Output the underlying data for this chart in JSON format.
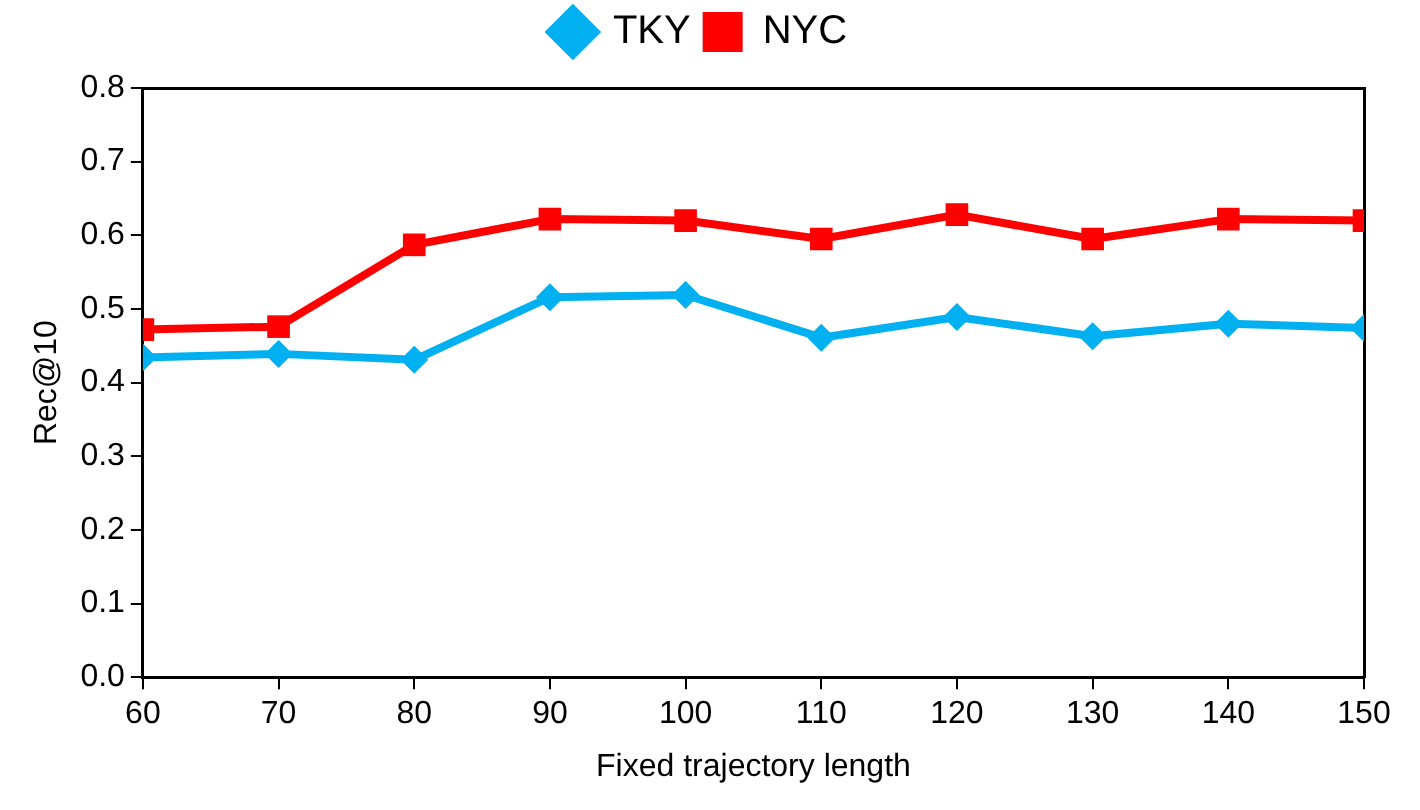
{
  "chart_data": {
    "type": "line",
    "xlabel": "Fixed trajectory length",
    "ylabel": "Rec@10",
    "x": [
      60,
      70,
      80,
      90,
      100,
      110,
      120,
      130,
      140,
      150
    ],
    "series": [
      {
        "name": "TKY",
        "color": "#00b0f0",
        "marker": "diamond",
        "values": [
          0.434,
          0.439,
          0.431,
          0.516,
          0.519,
          0.461,
          0.489,
          0.463,
          0.48,
          0.474
        ]
      },
      {
        "name": "NYC",
        "color": "#ff0000",
        "marker": "square",
        "values": [
          0.472,
          0.476,
          0.587,
          0.622,
          0.62,
          0.595,
          0.628,
          0.595,
          0.622,
          0.62
        ]
      }
    ],
    "xlim": [
      60,
      150
    ],
    "xticks": [
      60,
      70,
      80,
      90,
      100,
      110,
      120,
      130,
      140,
      150
    ],
    "ylim": [
      0,
      0.8
    ],
    "yticks": [
      {
        "value": 0,
        "label": "0.0"
      },
      0.1,
      0.2,
      0.3,
      0.4,
      0.5,
      0.6,
      0.7,
      0.8
    ],
    "grid": false,
    "legend": "top",
    "line_style": "solid"
  }
}
